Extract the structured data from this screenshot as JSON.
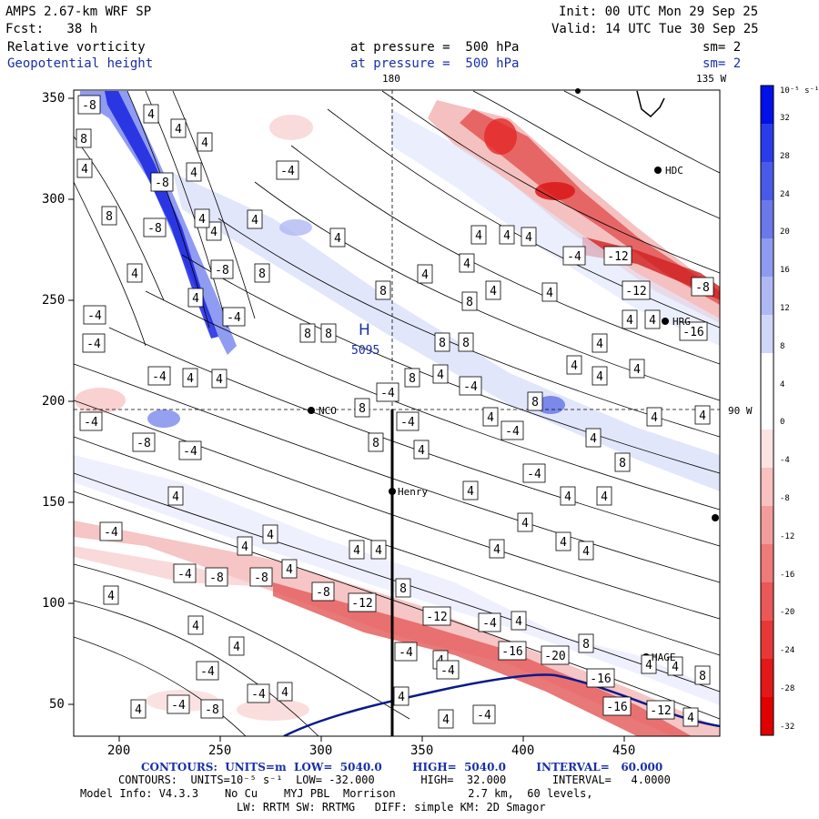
{
  "header": {
    "model": "AMPS 2.67-km WRF SP",
    "init": "Init: 00 UTC Mon 29 Sep 25",
    "forecast": "Fcst:   38 h",
    "valid": "Valid: 14 UTC Tue 30 Sep 25",
    "field1_name": "Relative vorticity",
    "field1_level": "at pressure =  500 hPa",
    "field1_smooth": "sm= 2",
    "field2_name": "Geopotential height",
    "field2_level": "at pressure =  500 hPa",
    "field2_smooth": "sm= 2"
  },
  "map": {
    "lon_top_180": "180",
    "lon_top_135w": "135 W",
    "lon_right_90w": "90 W",
    "high_label": "H",
    "high_value": "5095",
    "stations": [
      {
        "name": "NCO"
      },
      {
        "name": "Henry"
      },
      {
        "name": "HDC"
      },
      {
        "name": "HRG"
      },
      {
        "name": "HAGE"
      }
    ],
    "x_ticks": [
      "200",
      "250",
      "300",
      "350",
      "400",
      "450"
    ],
    "y_ticks": [
      "350",
      "300",
      "250",
      "200",
      "150",
      "100",
      "50"
    ],
    "contour_labels": [
      "-8",
      "8",
      "4",
      "-4",
      "12",
      "-12",
      "-16",
      "-20"
    ]
  },
  "colorbar": {
    "unit": "10⁻⁵ s⁻¹",
    "labels": [
      "32",
      "28",
      "24",
      "20",
      "16",
      "12",
      "8",
      "4",
      "0",
      "-4",
      "-8",
      "-12",
      "-16",
      "-20",
      "-24",
      "-28",
      "-32"
    ],
    "colors": [
      "#0010e8",
      "#2a3cea",
      "#4a5ae8",
      "#6a78ea",
      "#8e9af0",
      "#b0b8f4",
      "#d0d6f8",
      "#ffffff",
      "#ffffff",
      "#fde2e2",
      "#f8c0c0",
      "#f39c9c",
      "#ef7a7a",
      "#ea5858",
      "#e73838",
      "#e31818",
      "#e00000"
    ]
  },
  "footer": {
    "contours1": "CONTOURS:  UNITS=m  LOW=  5040.0        HIGH=  5040.0        INTERVAL=   60.000",
    "contours2": "CONTOURS:  UNITS=10⁻⁵ s⁻¹  LOW= -32.000       HIGH=  32.000       INTERVAL=   4.0000",
    "model_info": "Model Info: V4.3.3    No Cu    MYJ PBL  Morrison           2.7 km,  60 levels,",
    "model_info2": "LW: RRTM SW: RRTMG   DIFF: simple KM: 2D Smagor"
  }
}
